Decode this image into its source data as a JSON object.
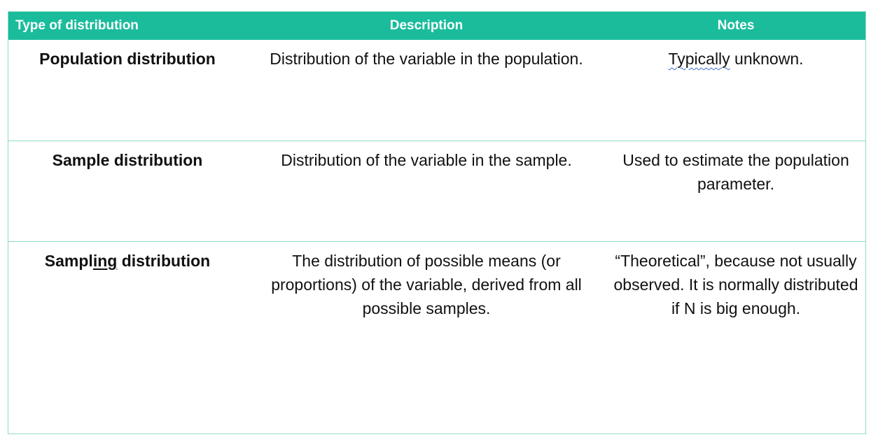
{
  "header": {
    "col1": "Type of distribution",
    "col2": "Description",
    "col3": "Notes"
  },
  "rows": [
    {
      "type": "Population distribution",
      "description": "Distribution of the variable in the population.",
      "notes_spellcheck": "Typically",
      "notes_rest": " unknown."
    },
    {
      "type": "Sample distribution",
      "description": "Distribution of the variable in the sample.",
      "notes": "Used to estimate the population parameter."
    },
    {
      "type_start": "Sampl",
      "type_underlined": "ing",
      "type_end": " distribution",
      "description": "The distribution of possible means (or proportions) of the variable, derived from all possible samples.",
      "notes": "“Theoretical”, because not usually observed.  It is normally distributed if N is big enough."
    }
  ],
  "colors": {
    "header_bg": "#1abc9c",
    "border": "#8fdcc5",
    "spellcheck": "#3b6fd1"
  }
}
